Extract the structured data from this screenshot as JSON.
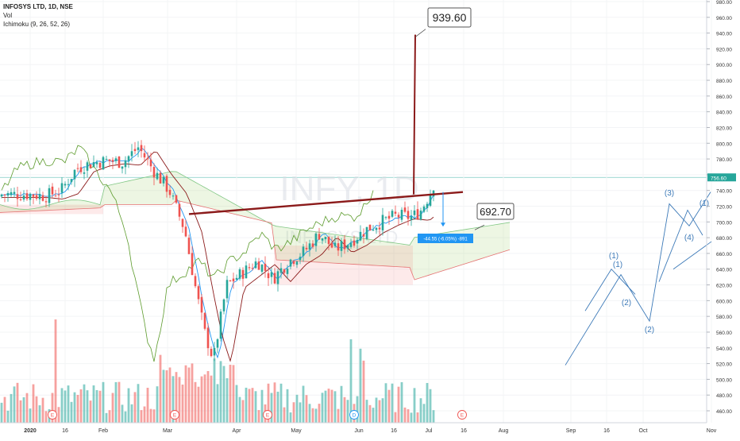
{
  "header": {
    "symbol_line": "INFOSYS LTD, 1D, NSE",
    "volume_label": "Vol",
    "ichimoku_label": "Ichimoku (9, 26, 52, 26)"
  },
  "watermark": {
    "ticker": "INFY, 1D",
    "name": "INFOSYS LTD"
  },
  "chart_data": {
    "type": "candlestick",
    "title": "INFOSYS LTD, 1D, NSE",
    "ylim": [
      450,
      985
    ],
    "y_ticks": [
      "460.00",
      "480.00",
      "500.00",
      "520.00",
      "540.00",
      "560.00",
      "580.00",
      "600.00",
      "620.00",
      "640.00",
      "660.00",
      "680.00",
      "700.00",
      "720.00",
      "740.00",
      "760.00",
      "780.00",
      "800.00",
      "820.00",
      "840.00",
      "860.00",
      "880.00",
      "900.00",
      "920.00",
      "940.00",
      "960.00",
      "980.00"
    ],
    "x_ticks": [
      "2020",
      "16",
      "Feb",
      "Mar",
      "Apr",
      "May",
      "Jun",
      "16",
      "Jul",
      "16",
      "Aug",
      "Sep",
      "16",
      "Oct",
      "Nov"
    ],
    "last_price": "756.60",
    "series": [
      {
        "name": "Price",
        "points": [
          {
            "d": "2020-01-01",
            "c": 735
          },
          {
            "d": "2020-01-08",
            "c": 733
          },
          {
            "d": "2020-01-15",
            "c": 740
          },
          {
            "d": "2020-01-22",
            "c": 768
          },
          {
            "d": "2020-01-29",
            "c": 775
          },
          {
            "d": "2020-02-05",
            "c": 778
          },
          {
            "d": "2020-02-12",
            "c": 776
          },
          {
            "d": "2020-02-19",
            "c": 795
          },
          {
            "d": "2020-02-26",
            "c": 765
          },
          {
            "d": "2020-03-04",
            "c": 740
          },
          {
            "d": "2020-03-11",
            "c": 690
          },
          {
            "d": "2020-03-16",
            "c": 615
          },
          {
            "d": "2020-03-20",
            "c": 560
          },
          {
            "d": "2020-03-24",
            "c": 525
          },
          {
            "d": "2020-03-30",
            "c": 620
          },
          {
            "d": "2020-04-06",
            "c": 635
          },
          {
            "d": "2020-04-13",
            "c": 650
          },
          {
            "d": "2020-04-20",
            "c": 628
          },
          {
            "d": "2020-04-27",
            "c": 650
          },
          {
            "d": "2020-05-04",
            "c": 662
          },
          {
            "d": "2020-05-11",
            "c": 685
          },
          {
            "d": "2020-05-18",
            "c": 665
          },
          {
            "d": "2020-05-25",
            "c": 675
          },
          {
            "d": "2020-06-01",
            "c": 690
          },
          {
            "d": "2020-06-08",
            "c": 700
          },
          {
            "d": "2020-06-15",
            "c": 708
          },
          {
            "d": "2020-06-22",
            "c": 706
          },
          {
            "d": "2020-06-26",
            "c": 715
          },
          {
            "d": "2020-06-30",
            "c": 735
          },
          {
            "d": "2020-07-03",
            "c": 756.6
          }
        ]
      }
    ],
    "annotations": {
      "target_label": "939.60",
      "support_label": "692.70",
      "measure_label": "-44.55 (-6.05%) -891",
      "event_marks": [
        "E",
        "E",
        "E",
        "D",
        "E"
      ],
      "elliott_labels": [
        "(1)",
        "(1)",
        "(2)",
        "(3)",
        "(2)",
        "(4)",
        "(1)"
      ]
    },
    "colors": {
      "up": "#26a69a",
      "down": "#ef5350",
      "trend": "#8b1a1a",
      "tenkan": "#2196f3",
      "kijun": "#8b1a1a",
      "chikou": "#5c9b2c",
      "wave": "#3d7ab8"
    }
  }
}
